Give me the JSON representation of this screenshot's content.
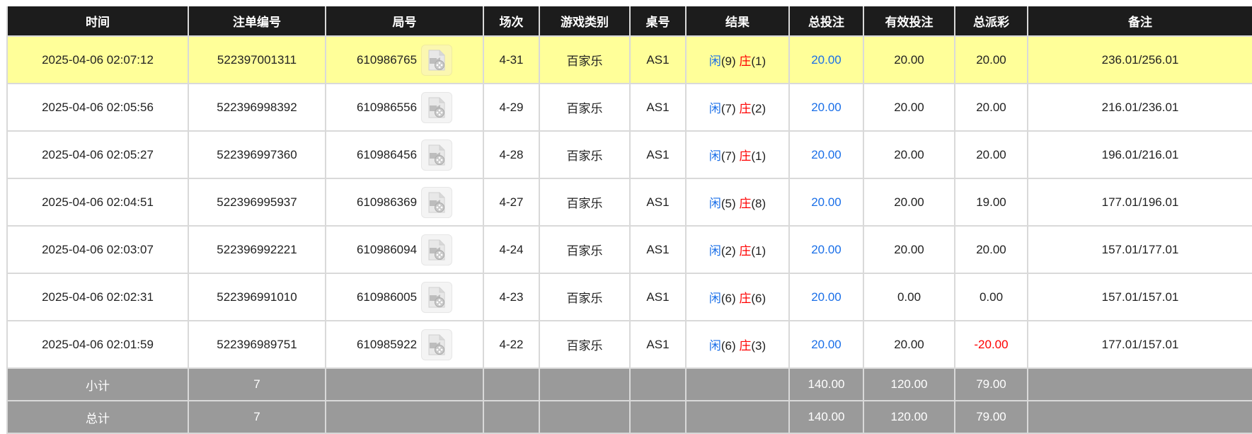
{
  "headers": [
    "时间",
    "注单编号",
    "局号",
    "场次",
    "游戏类别",
    "桌号",
    "结果",
    "总投注",
    "有效投注",
    "总派彩",
    "备注"
  ],
  "rows": [
    {
      "time": "2025-04-06 02:07:12",
      "bet_id": "522397001311",
      "round_id": "610986765",
      "session": "4-31",
      "game": "百家乐",
      "table": "AS1",
      "player_label": "闲",
      "player_score": "(9)",
      "banker_label": "庄",
      "banker_score": "(1)",
      "total_bet": "20.00",
      "valid_bet": "20.00",
      "payout": "20.00",
      "payout_negative": false,
      "note": "236.01/256.01",
      "highlighted": true
    },
    {
      "time": "2025-04-06 02:05:56",
      "bet_id": "522396998392",
      "round_id": "610986556",
      "session": "4-29",
      "game": "百家乐",
      "table": "AS1",
      "player_label": "闲",
      "player_score": "(7)",
      "banker_label": "庄",
      "banker_score": "(2)",
      "total_bet": "20.00",
      "valid_bet": "20.00",
      "payout": "20.00",
      "payout_negative": false,
      "note": "216.01/236.01"
    },
    {
      "time": "2025-04-06 02:05:27",
      "bet_id": "522396997360",
      "round_id": "610986456",
      "session": "4-28",
      "game": "百家乐",
      "table": "AS1",
      "player_label": "闲",
      "player_score": "(7)",
      "banker_label": "庄",
      "banker_score": "(1)",
      "total_bet": "20.00",
      "valid_bet": "20.00",
      "payout": "20.00",
      "payout_negative": false,
      "note": "196.01/216.01"
    },
    {
      "time": "2025-04-06 02:04:51",
      "bet_id": "522396995937",
      "round_id": "610986369",
      "session": "4-27",
      "game": "百家乐",
      "table": "AS1",
      "player_label": "闲",
      "player_score": "(5)",
      "banker_label": "庄",
      "banker_score": "(8)",
      "total_bet": "20.00",
      "valid_bet": "20.00",
      "payout": "19.00",
      "payout_negative": false,
      "note": "177.01/196.01"
    },
    {
      "time": "2025-04-06 02:03:07",
      "bet_id": "522396992221",
      "round_id": "610986094",
      "session": "4-24",
      "game": "百家乐",
      "table": "AS1",
      "player_label": "闲",
      "player_score": "(2)",
      "banker_label": "庄",
      "banker_score": "(1)",
      "total_bet": "20.00",
      "valid_bet": "20.00",
      "payout": "20.00",
      "payout_negative": false,
      "note": "157.01/177.01"
    },
    {
      "time": "2025-04-06 02:02:31",
      "bet_id": "522396991010",
      "round_id": "610986005",
      "session": "4-23",
      "game": "百家乐",
      "table": "AS1",
      "player_label": "闲",
      "player_score": "(6)",
      "banker_label": "庄",
      "banker_score": "(6)",
      "total_bet": "20.00",
      "valid_bet": "0.00",
      "payout": "0.00",
      "payout_negative": false,
      "note": "157.01/157.01"
    },
    {
      "time": "2025-04-06 02:01:59",
      "bet_id": "522396989751",
      "round_id": "610985922",
      "session": "4-22",
      "game": "百家乐",
      "table": "AS1",
      "player_label": "闲",
      "player_score": "(6)",
      "banker_label": "庄",
      "banker_score": "(3)",
      "total_bet": "20.00",
      "valid_bet": "20.00",
      "payout": "-20.00",
      "payout_negative": true,
      "note": "177.01/157.01"
    }
  ],
  "subtotal": {
    "label": "小计",
    "count": "7",
    "total_bet": "140.00",
    "valid_bet": "120.00",
    "payout": "79.00"
  },
  "total": {
    "label": "总计",
    "count": "7",
    "total_bet": "140.00",
    "valid_bet": "120.00",
    "payout": "79.00"
  },
  "colors": {
    "header_bg": "#1c1c1c",
    "highlight_row": "#ffff99",
    "summary_bg": "#9a9a9a",
    "player": "#1a6fe8",
    "banker": "#ff0000",
    "negative": "#ff0000"
  },
  "icons": {
    "round_video": "video-replay-icon"
  }
}
